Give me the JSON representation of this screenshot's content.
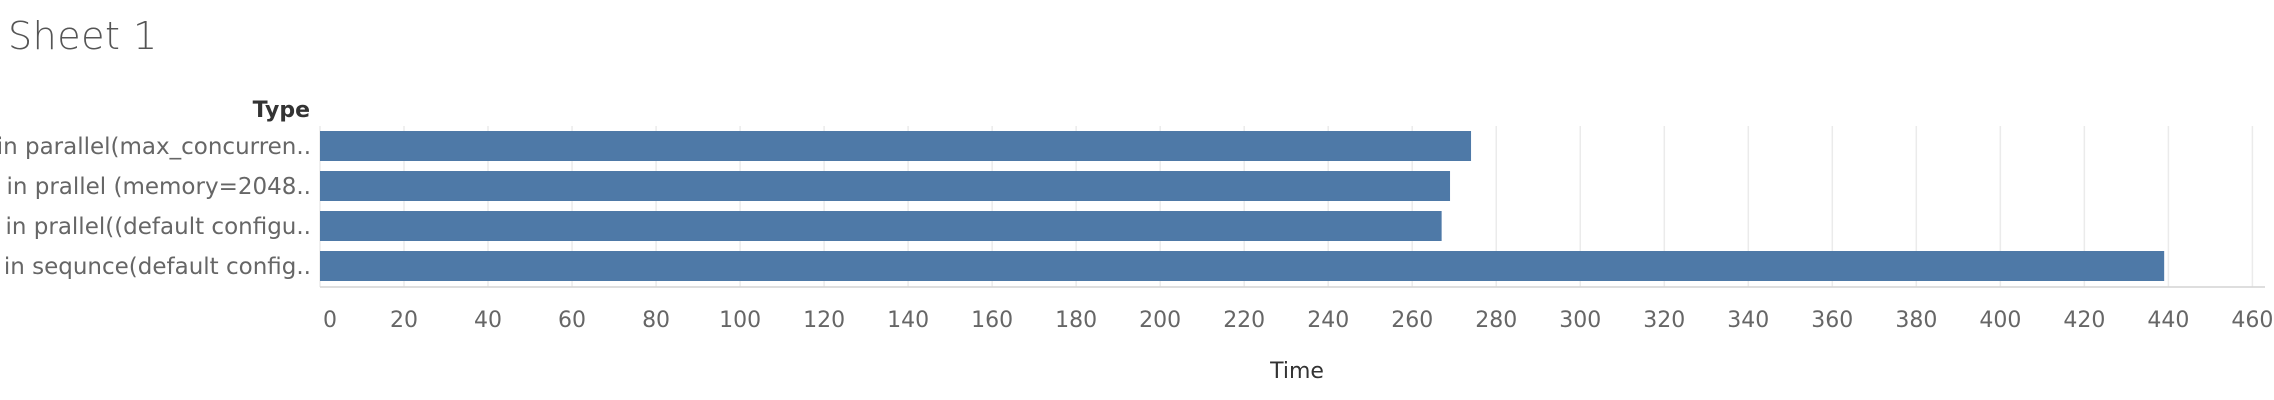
{
  "sheet": {
    "title": "Sheet 1"
  },
  "chart_data": {
    "type": "bar",
    "orientation": "horizontal",
    "categories": [
      "in parallel(max_concurren..",
      "in prallel (memory=2048..",
      "in prallel((default configu..",
      "in sequnce(default config.."
    ],
    "values": [
      274,
      269,
      267,
      439
    ],
    "ylabel": "Type",
    "xlabel": "Time",
    "xlim": [
      0,
      463
    ],
    "xticks": [
      0,
      20,
      40,
      60,
      80,
      100,
      120,
      140,
      160,
      180,
      200,
      220,
      240,
      260,
      280,
      300,
      320,
      340,
      360,
      380,
      400,
      420,
      440,
      460
    ],
    "grid": "vertical",
    "legend": "none",
    "bar_color": "#4e79a7"
  }
}
